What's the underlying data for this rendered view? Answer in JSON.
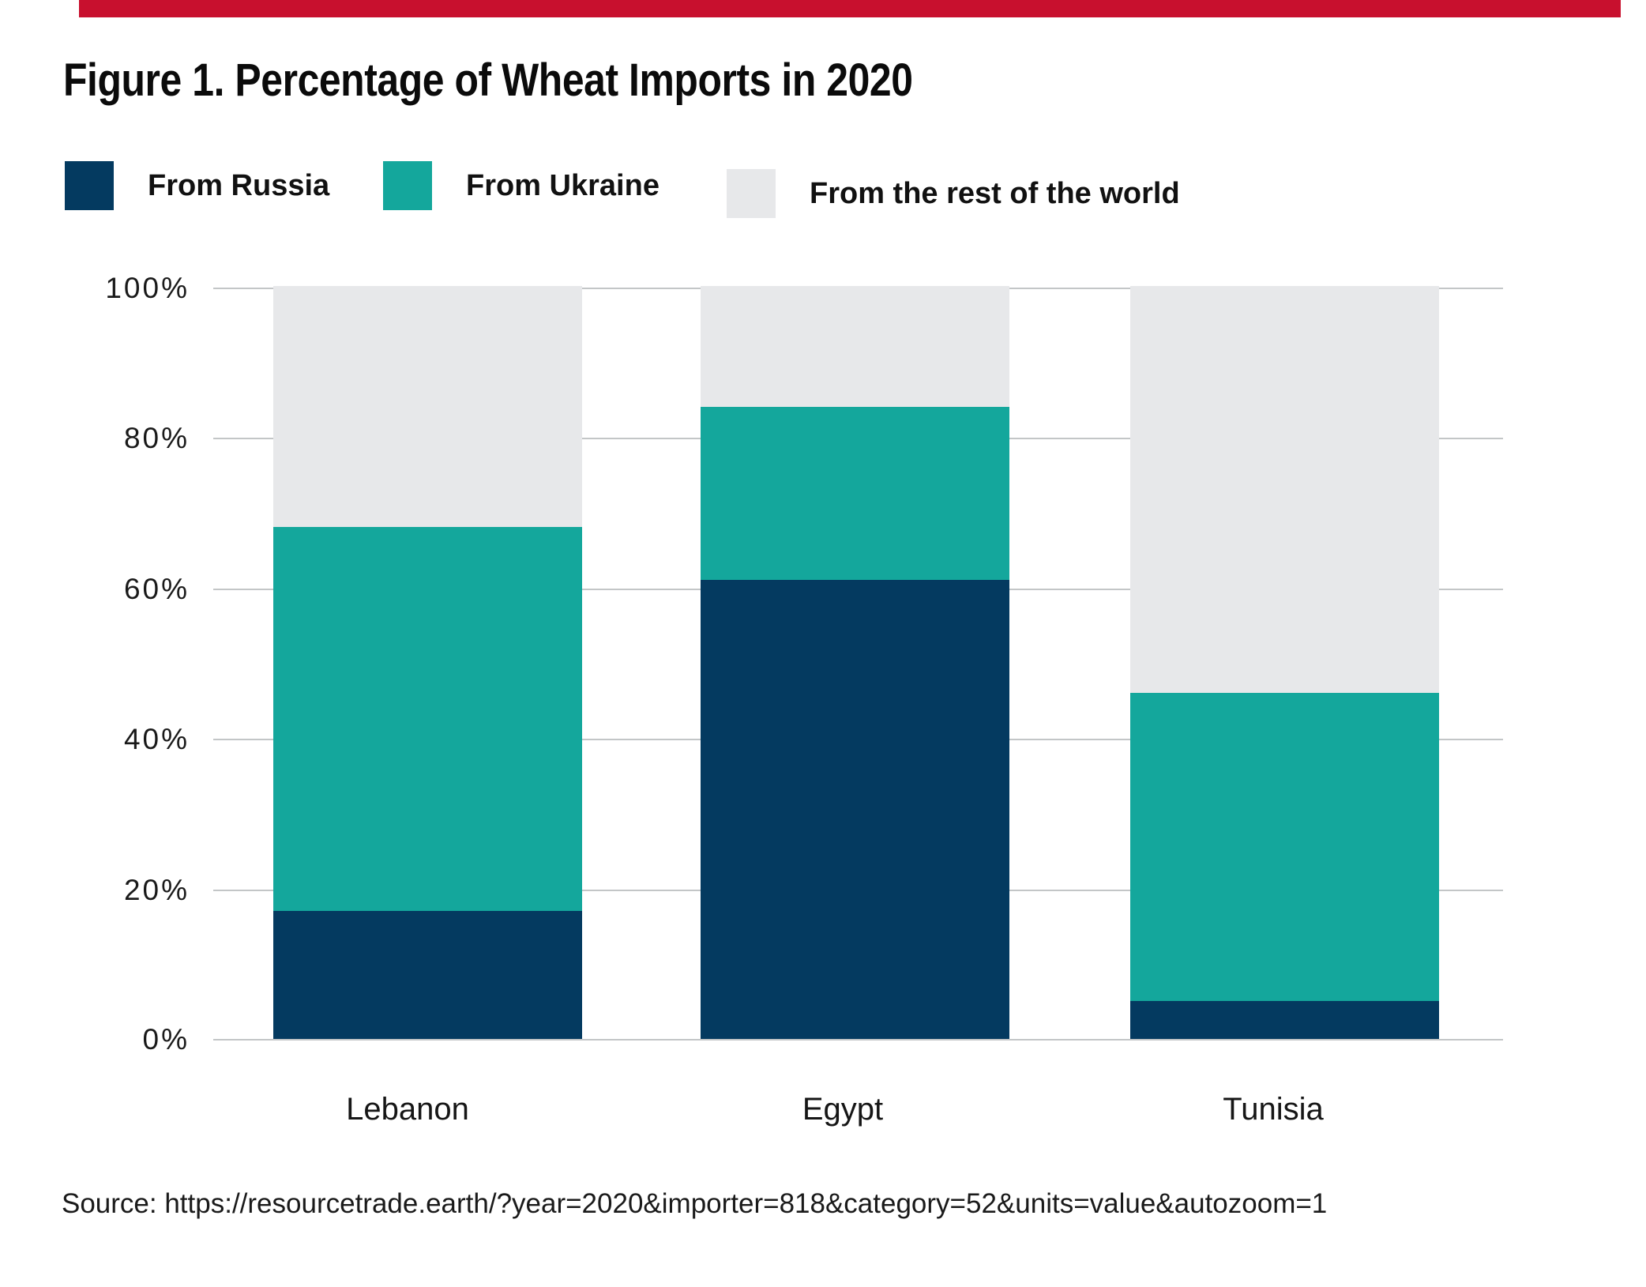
{
  "accent_bar": {
    "color": "#c8102e"
  },
  "figure": {
    "title": "Figure 1. Percentage of Wheat Imports in 2020"
  },
  "legend": {
    "items": [
      {
        "label": "From Russia",
        "color": "#043a60"
      },
      {
        "label": "From Ukraine",
        "color": "#14a79c"
      },
      {
        "label": "From the rest of the world",
        "color": "#e7e8ea"
      }
    ]
  },
  "y_axis": {
    "ticks": [
      "100%",
      "80%",
      "60%",
      "40%",
      "20%",
      "0%"
    ]
  },
  "chart_data": {
    "type": "bar",
    "stacked": true,
    "title": "Figure 1. Percentage of Wheat Imports in 2020",
    "xlabel": "",
    "ylabel": "",
    "ylim": [
      0,
      100
    ],
    "ytick_labels": [
      "0%",
      "20%",
      "40%",
      "60%",
      "80%",
      "100%"
    ],
    "grid": true,
    "legend_position": "top",
    "categories": [
      "Lebanon",
      "Egypt",
      "Tunisia"
    ],
    "series": [
      {
        "name": "From Russia",
        "color": "#043a60",
        "values": [
          17,
          61,
          5
        ]
      },
      {
        "name": "From Ukraine",
        "color": "#14a79c",
        "values": [
          51,
          23,
          41
        ]
      },
      {
        "name": "From the rest of the world",
        "color": "#e7e8ea",
        "values": [
          32,
          16,
          54
        ]
      }
    ]
  },
  "source": {
    "text": "Source: https://resourcetrade.earth/?year=2020&importer=818&category=52&units=value&autozoom=1"
  }
}
